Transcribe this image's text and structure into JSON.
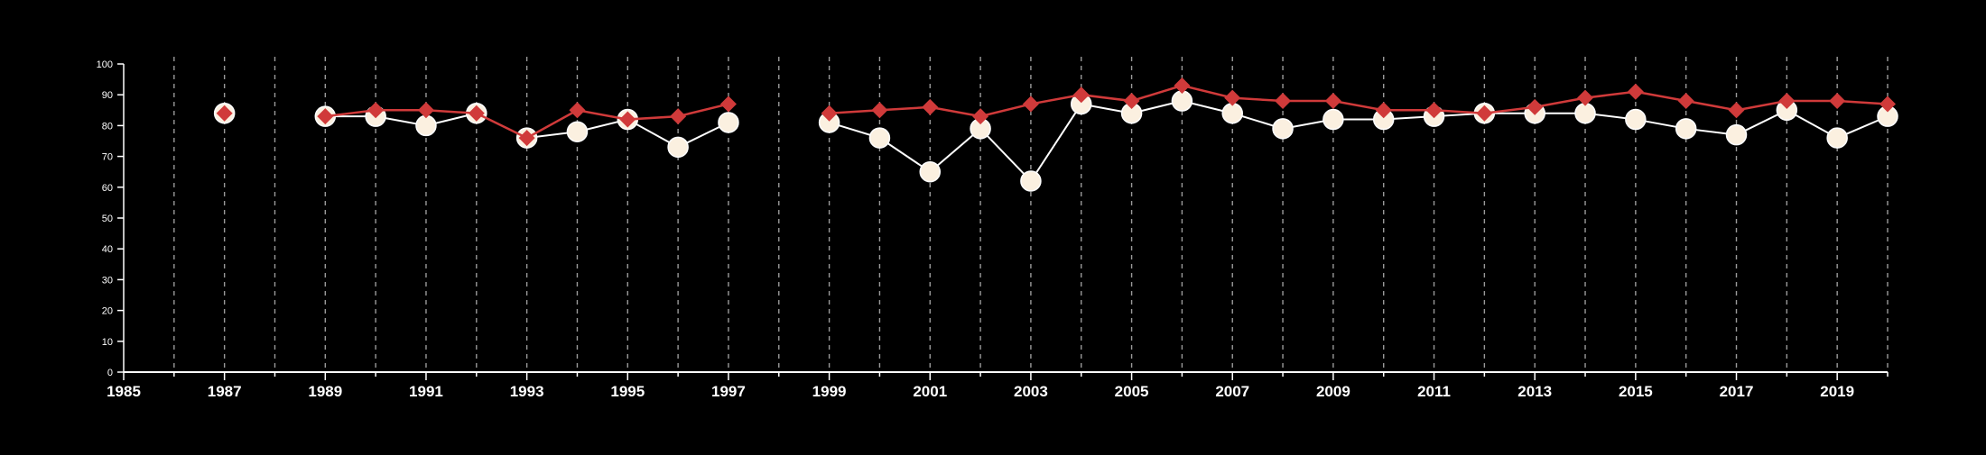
{
  "chart_data": {
    "type": "line",
    "title": "",
    "xlabel": "",
    "ylabel": "",
    "xlim": [
      1985,
      2020
    ],
    "ylim": [
      0,
      100
    ],
    "grid": "vertical dashed lines at each year",
    "legend": "none",
    "x_ticks": [
      1985,
      1987,
      1989,
      1991,
      1993,
      1995,
      1997,
      1999,
      2001,
      2003,
      2005,
      2007,
      2009,
      2011,
      2013,
      2015,
      2017,
      2019
    ],
    "y_ticks": [
      0,
      10,
      20,
      30,
      40,
      50,
      60,
      70,
      80,
      90,
      100
    ],
    "x_tick_labels": [
      "1985",
      "1987",
      "1989",
      "1991",
      "1993",
      "1995",
      "1997",
      "1999",
      "2001",
      "2003",
      "2005",
      "2007",
      "2009",
      "2011",
      "2013",
      "2015",
      "2017",
      "2019"
    ],
    "y_tick_labels": [
      "0",
      "10",
      "20",
      "30",
      "40",
      "50",
      "60",
      "70",
      "80",
      "90",
      "100"
    ],
    "x": [
      1987,
      1989,
      1990,
      1991,
      1992,
      1993,
      1994,
      1995,
      1996,
      1997,
      1999,
      2000,
      2001,
      2002,
      2003,
      2004,
      2005,
      2006,
      2007,
      2008,
      2009,
      2010,
      2011,
      2012,
      2013,
      2014,
      2015,
      2016,
      2017,
      2018,
      2019,
      2020
    ],
    "series": [
      {
        "marker": "circle",
        "color": "#fbf0e0",
        "values": [
          84,
          83,
          83,
          80,
          84,
          76,
          78,
          82,
          73,
          81,
          81,
          76,
          65,
          79,
          62,
          87,
          84,
          88,
          84,
          79,
          82,
          82,
          83,
          84,
          84,
          84,
          82,
          79,
          77,
          85,
          76,
          83
        ]
      },
      {
        "marker": "diamond",
        "color": "#d03a3a",
        "values": [
          84,
          83,
          85,
          85,
          84,
          76,
          85,
          82,
          83,
          87,
          84,
          85,
          86,
          83,
          87,
          90,
          88,
          93,
          89,
          88,
          88,
          85,
          85,
          84,
          86,
          89,
          91,
          88,
          85,
          88,
          88,
          87
        ]
      }
    ]
  }
}
